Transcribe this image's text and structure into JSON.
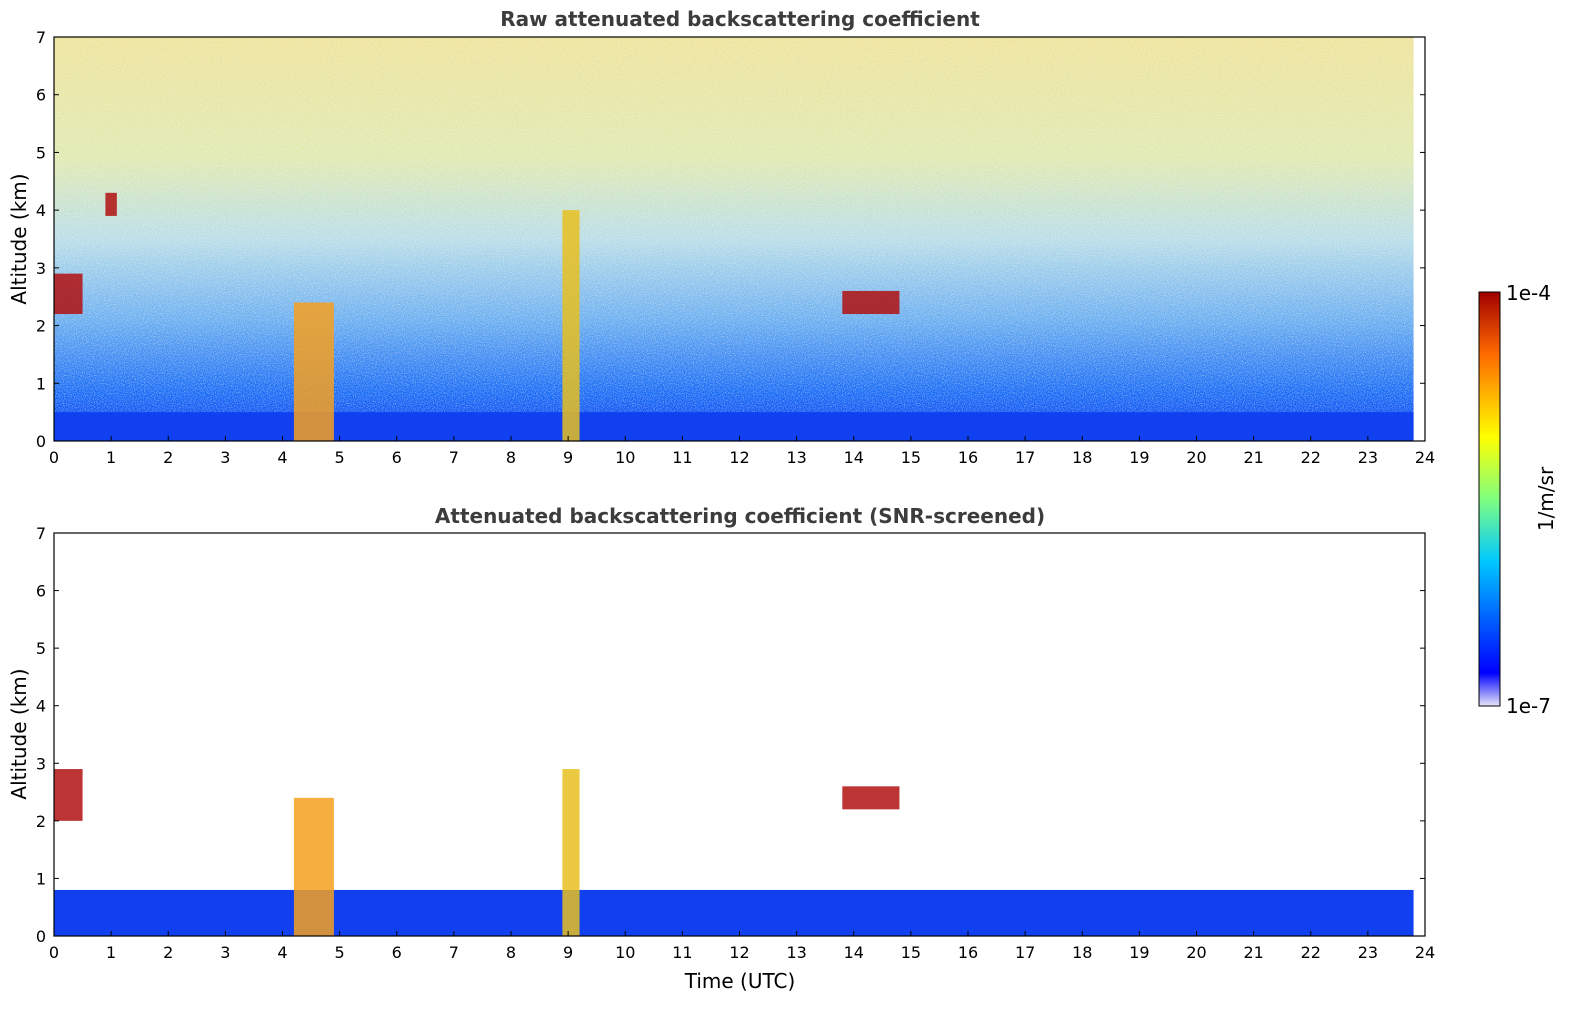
{
  "chart_data": [
    {
      "type": "heatmap",
      "title": "Raw attenuated backscattering coefficient",
      "xlabel": "",
      "ylabel": "Altitude (km)",
      "xlim": [
        0,
        24
      ],
      "ylim": [
        0,
        7
      ],
      "xticks": [
        0,
        1,
        2,
        3,
        4,
        5,
        6,
        7,
        8,
        9,
        10,
        11,
        12,
        13,
        14,
        15,
        16,
        17,
        18,
        19,
        20,
        21,
        22,
        23,
        24
      ],
      "yticks": [
        0,
        1,
        2,
        3,
        4,
        5,
        6,
        7
      ],
      "data_end_time": 23.8,
      "boundary_layer_top_km": 0.5,
      "features": [
        {
          "kind": "cloud",
          "t": [
            0.0,
            0.5
          ],
          "z": [
            2.2,
            2.9
          ]
        },
        {
          "kind": "cloud",
          "t": [
            0.9,
            1.1
          ],
          "z": [
            3.9,
            4.3
          ]
        },
        {
          "kind": "precipitation",
          "t": [
            4.2,
            4.9
          ],
          "z": [
            0.0,
            2.4
          ]
        },
        {
          "kind": "aerosol plume",
          "t": [
            8.9,
            9.2
          ],
          "z": [
            0.0,
            4.0
          ]
        },
        {
          "kind": "cloud",
          "t": [
            13.8,
            14.8
          ],
          "z": [
            2.2,
            2.6
          ]
        }
      ]
    },
    {
      "type": "heatmap",
      "title": "Attenuated backscattering coefficient (SNR-screened)",
      "xlabel": "Time (UTC)",
      "ylabel": "Altitude (km)",
      "xlim": [
        0,
        24
      ],
      "ylim": [
        0,
        7
      ],
      "xticks": [
        0,
        1,
        2,
        3,
        4,
        5,
        6,
        7,
        8,
        9,
        10,
        11,
        12,
        13,
        14,
        15,
        16,
        17,
        18,
        19,
        20,
        21,
        22,
        23,
        24
      ],
      "yticks": [
        0,
        1,
        2,
        3,
        4,
        5,
        6,
        7
      ],
      "data_end_time": 23.8,
      "boundary_layer_top_km": 0.8,
      "features": [
        {
          "kind": "cloud",
          "t": [
            0.0,
            0.5
          ],
          "z": [
            2.0,
            2.9
          ]
        },
        {
          "kind": "precipitation",
          "t": [
            4.2,
            4.9
          ],
          "z": [
            0.0,
            2.4
          ]
        },
        {
          "kind": "aerosol plume",
          "t": [
            8.9,
            9.2
          ],
          "z": [
            0.0,
            2.9
          ]
        },
        {
          "kind": "cloud",
          "t": [
            13.8,
            14.8
          ],
          "z": [
            2.2,
            2.6
          ]
        }
      ]
    }
  ],
  "colorbar": {
    "max_label": "1e-4",
    "min_label": "1e-7",
    "unit_label": "1/m/sr",
    "colormap": "jet",
    "colors": [
      "#e6e6f7",
      "#0000ff",
      "#00c8ff",
      "#80ff80",
      "#ffff00",
      "#ff6a00",
      "#a00000"
    ]
  }
}
